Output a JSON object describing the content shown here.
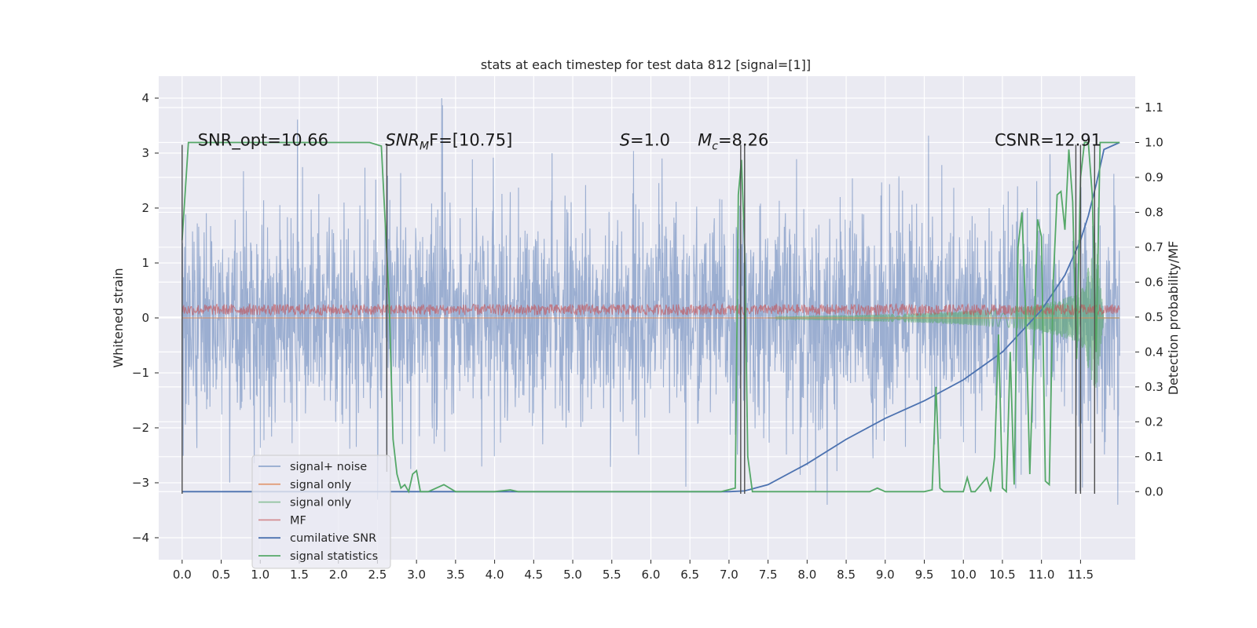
{
  "chart_data": {
    "type": "line",
    "title": "stats at each timestep for test data 812 [signal=[1]]",
    "xlabel": "",
    "ylabel": "Whitened strain",
    "y2label": "Detection probability/MF",
    "xlim": [
      -0.3,
      12.2
    ],
    "ylim": [
      -4.4,
      4.4
    ],
    "y2lim": [
      -0.195,
      1.19
    ],
    "x_ticks": [
      0.0,
      0.5,
      1.0,
      1.5,
      2.0,
      2.5,
      3.0,
      3.5,
      4.0,
      4.5,
      5.0,
      5.5,
      6.0,
      6.5,
      7.0,
      7.5,
      8.0,
      8.5,
      9.0,
      9.5,
      10.0,
      10.5,
      11.0,
      11.5
    ],
    "x_tick_labels": [
      "0.0",
      "0.5",
      "1.0",
      "1.5",
      "2.0",
      "2.5",
      "3.0",
      "3.5",
      "4.0",
      "4.5",
      "5.0",
      "5.5",
      "6.0",
      "6.5",
      "7.0",
      "7.5",
      "8.0",
      "8.5",
      "9.0",
      "9.5",
      "10.0",
      "10.5",
      "11.0",
      "11.5"
    ],
    "y_ticks": [
      -4,
      -3,
      -2,
      -1,
      0,
      1,
      2,
      3,
      4
    ],
    "y_tick_labels": [
      "−4",
      "−3",
      "−2",
      "−1",
      "0",
      "1",
      "2",
      "3",
      "4"
    ],
    "y2_ticks": [
      0.0,
      0.1,
      0.2,
      0.3,
      0.4,
      0.5,
      0.6,
      0.7,
      0.8,
      0.9,
      1.0,
      1.1
    ],
    "y2_tick_labels": [
      "0.0",
      "0.1",
      "0.2",
      "0.3",
      "0.4",
      "0.5",
      "0.6",
      "0.7",
      "0.8",
      "0.9",
      "1.0",
      "1.1"
    ],
    "grid": true,
    "legend_position": "lower-left",
    "annotations": [
      {
        "text": "SNR_opt=10.66",
        "x": 0.2,
        "y": 3.25
      },
      {
        "text": "SNR_MF=[10.75]",
        "x": 2.6,
        "y": 3.25,
        "main": "SNR",
        "sub": "M",
        "rest": "F=[10.75]"
      },
      {
        "text": "S=1.0",
        "x": 5.6,
        "y": 3.25,
        "main": "S",
        "rest": "=1.0"
      },
      {
        "text": "M_c=8.26",
        "x": 6.6,
        "y": 3.25,
        "main": "M",
        "sub": "c",
        "rest": "=8.26"
      },
      {
        "text": "CSNR=12.91",
        "x": 10.4,
        "y": 3.25
      }
    ],
    "vertical_markers": [
      {
        "x": 0.0,
        "y_from": -3.2,
        "y_to": 3.15
      },
      {
        "x": 2.62,
        "y_from": -2.8,
        "y_to": 3.15
      },
      {
        "x": 7.15,
        "y_from": -3.2,
        "y_to": 3.15
      },
      {
        "x": 7.2,
        "y_from": -3.2,
        "y_to": 3.15
      },
      {
        "x": 11.44,
        "y_from": -3.2,
        "y_to": 3.15
      },
      {
        "x": 11.5,
        "y_from": -3.2,
        "y_to": 3.15
      },
      {
        "x": 11.68,
        "y_from": -3.2,
        "y_to": 3.15
      }
    ],
    "series": [
      {
        "name": "signal+ noise",
        "color": "#4c72b0",
        "axis": "left",
        "opacity": 0.5,
        "description": "dense noisy strain, approx +/-1.3 core with peaks to about 3 and -3, from t=0 to 12"
      },
      {
        "name": "signal only",
        "color": "#dd8452",
        "axis": "left"
      },
      {
        "name": "signal only",
        "color": "#55a868",
        "axis": "left",
        "envelope": [
          [
            7.6,
            0.02
          ],
          [
            8.5,
            0.05
          ],
          [
            9.5,
            0.09
          ],
          [
            10.5,
            0.16
          ],
          [
            11.0,
            0.24
          ],
          [
            11.5,
            0.45
          ],
          [
            11.7,
            1.4
          ],
          [
            11.8,
            0.0
          ]
        ]
      },
      {
        "name": "MF",
        "color": "#c44e52",
        "axis": "left",
        "level": 0.15,
        "spread": 0.1
      },
      {
        "name": "cumilative SNR",
        "color": "#4c72b0",
        "axis": "right",
        "x": [
          0.0,
          7.0,
          7.2,
          7.5,
          8.0,
          8.5,
          9.0,
          9.5,
          10.0,
          10.5,
          11.0,
          11.3,
          11.5,
          11.6,
          11.7,
          11.8,
          12.0
        ],
        "y": [
          0.0,
          0.0,
          0.002,
          0.02,
          0.08,
          0.15,
          0.21,
          0.26,
          0.32,
          0.4,
          0.52,
          0.62,
          0.72,
          0.79,
          0.88,
          0.98,
          1.0
        ]
      },
      {
        "name": "signal statistics",
        "color": "#55a868",
        "axis": "right",
        "x": [
          0.0,
          0.08,
          0.3,
          2.4,
          2.55,
          2.65,
          2.7,
          2.75,
          2.8,
          2.85,
          2.9,
          2.95,
          3.0,
          3.05,
          3.15,
          3.35,
          3.5,
          3.7,
          4.0,
          4.2,
          4.3,
          4.6,
          5.0,
          6.0,
          6.9,
          7.08,
          7.12,
          7.16,
          7.2,
          7.24,
          7.3,
          7.5,
          8.0,
          8.8,
          8.9,
          9.0,
          9.5,
          9.6,
          9.65,
          9.7,
          9.75,
          9.8,
          10.0,
          10.05,
          10.1,
          10.15,
          10.3,
          10.35,
          10.4,
          10.45,
          10.5,
          10.55,
          10.6,
          10.65,
          10.7,
          10.75,
          10.8,
          10.85,
          10.9,
          10.95,
          11.0,
          11.05,
          11.1,
          11.15,
          11.2,
          11.25,
          11.3,
          11.35,
          11.4,
          11.45,
          11.5,
          11.55,
          11.6,
          11.65,
          11.7,
          11.75,
          11.8,
          11.9,
          12.0
        ],
        "y": [
          0.72,
          1.0,
          1.0,
          1.0,
          0.99,
          0.55,
          0.15,
          0.05,
          0.01,
          0.02,
          0.0,
          0.05,
          0.06,
          0.0,
          0.0,
          0.02,
          0.0,
          0.0,
          0.0,
          0.005,
          0.0,
          0.0,
          0.0,
          0.0,
          0.0,
          0.01,
          0.85,
          0.95,
          0.7,
          0.1,
          0.0,
          0.0,
          0.0,
          0.0,
          0.01,
          0.0,
          0.0,
          0.005,
          0.3,
          0.01,
          0.0,
          0.0,
          0.0,
          0.04,
          0.0,
          0.0,
          0.04,
          0.0,
          0.1,
          0.45,
          0.01,
          0.0,
          0.4,
          0.02,
          0.7,
          0.8,
          0.5,
          0.05,
          0.4,
          0.78,
          0.73,
          0.03,
          0.02,
          0.6,
          0.85,
          0.86,
          0.75,
          0.98,
          0.83,
          0.38,
          0.9,
          1.0,
          1.0,
          0.85,
          0.4,
          1.0,
          1.0,
          1.0,
          1.0
        ]
      }
    ]
  },
  "legend": {
    "items": [
      {
        "label": "signal+ noise",
        "color": "#4c72b0",
        "alpha": 0.55
      },
      {
        "label": "signal only",
        "color": "#dd8452",
        "alpha": 0.75
      },
      {
        "label": "signal only",
        "color": "#55a868",
        "alpha": 0.6
      },
      {
        "label": "MF",
        "color": "#c44e52",
        "alpha": 0.6
      },
      {
        "label": "cumilative SNR",
        "color": "#4c72b0",
        "alpha": 1.0
      },
      {
        "label": "signal statistics",
        "color": "#55a868",
        "alpha": 1.0
      }
    ]
  },
  "colors": {
    "plot_background": "#eaeaf2",
    "grid": "#ffffff",
    "marker_line": "#4d4d4d"
  }
}
